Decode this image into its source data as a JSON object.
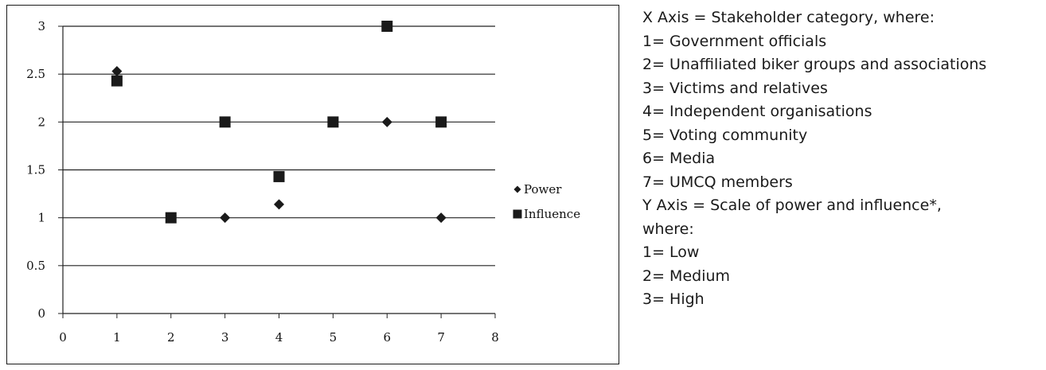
{
  "chart_data": {
    "type": "scatter",
    "xlim": [
      0,
      8
    ],
    "ylim": [
      0,
      3
    ],
    "x_ticks": [
      "0",
      "1",
      "2",
      "3",
      "4",
      "5",
      "6",
      "7",
      "8"
    ],
    "y_ticks": [
      "0",
      "0.5",
      "1",
      "1.5",
      "2",
      "2.5",
      "3"
    ],
    "grid": "horizontal",
    "legend_position": "right",
    "series": [
      {
        "name": "Power",
        "marker": "diamond",
        "color": "#1a1a1a",
        "points": [
          [
            1,
            2.53
          ],
          [
            3,
            1
          ],
          [
            4,
            1.14
          ],
          [
            6,
            2
          ],
          [
            7,
            1
          ]
        ]
      },
      {
        "name": "Influence",
        "marker": "square",
        "color": "#1a1a1a",
        "points": [
          [
            1,
            2.43
          ],
          [
            2,
            1
          ],
          [
            3,
            2
          ],
          [
            4,
            1.43
          ],
          [
            5,
            2
          ],
          [
            6,
            3
          ],
          [
            7,
            2
          ]
        ]
      }
    ]
  },
  "description_lines": [
    "X Axis = Stakeholder category, where:",
    "1= Government officials",
    "2= Unaffiliated biker groups and associations",
    "3= Victims and relatives",
    "4= Independent organisations",
    "5= Voting community",
    "6= Media",
    "7= UMCQ members",
    "Y Axis = Scale of power and influence*,",
    "where:",
    "1= Low",
    "2= Medium",
    "3= High"
  ]
}
